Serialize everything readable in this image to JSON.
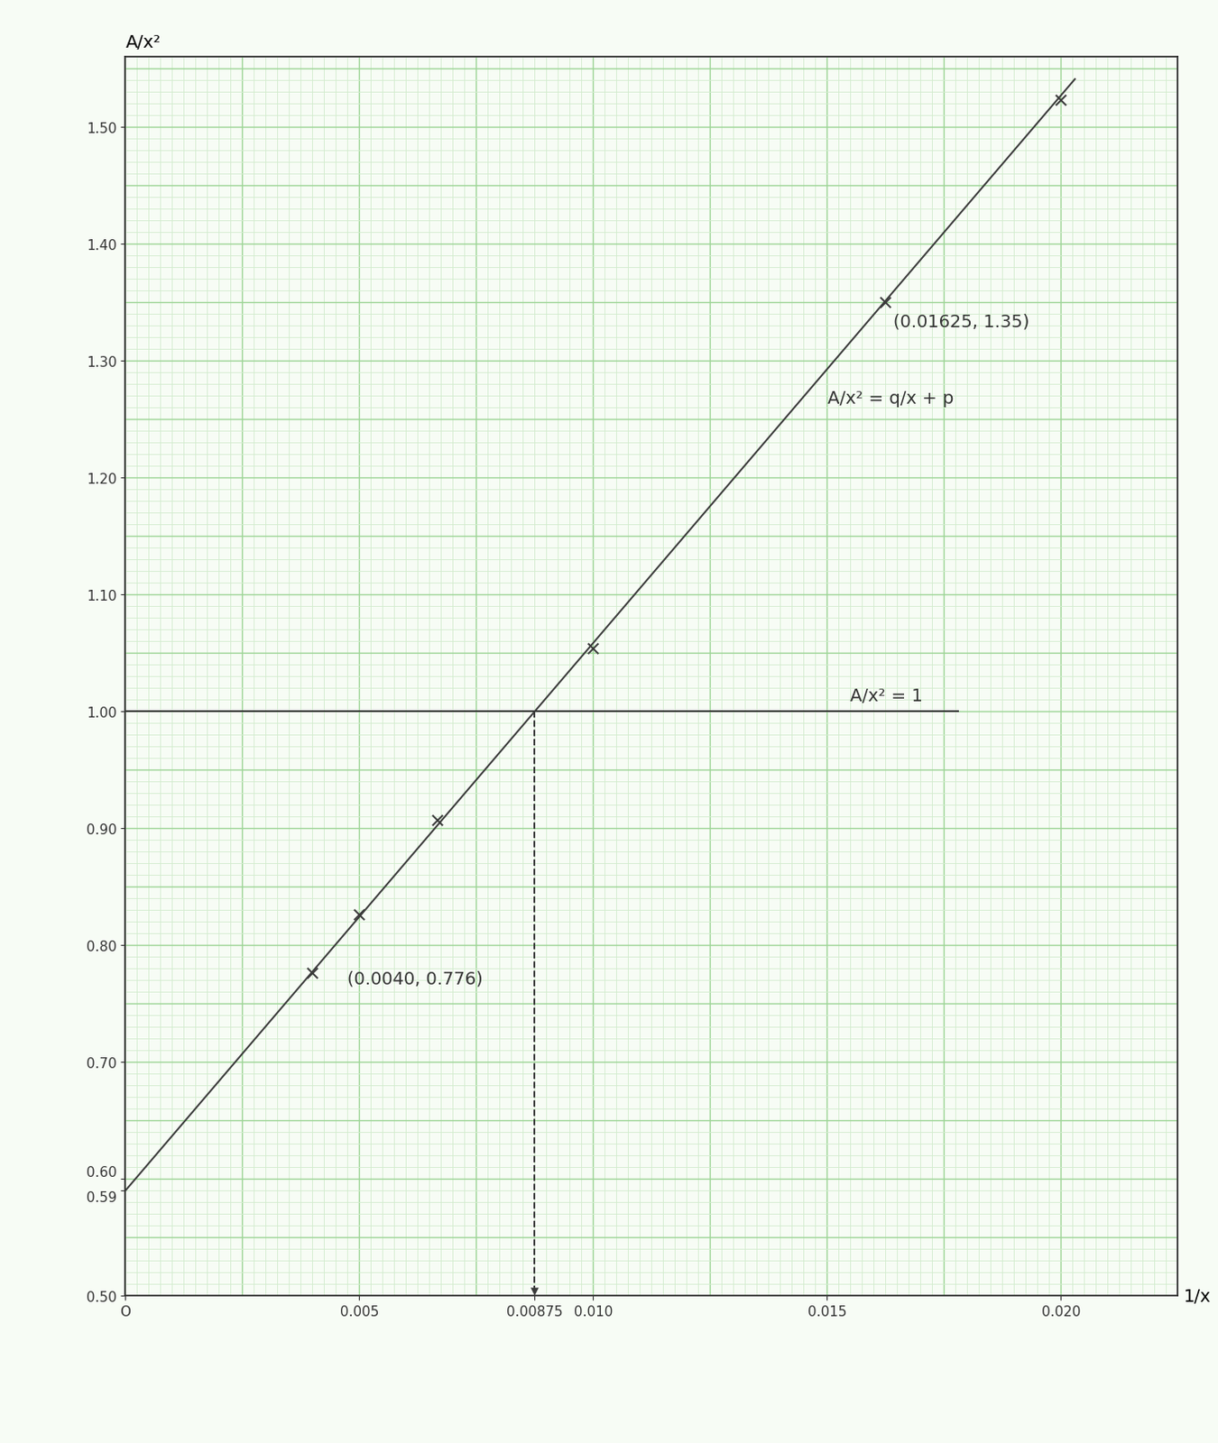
{
  "chart_data": {
    "type": "line",
    "x_label": "1/x",
    "y_label": "A/x²",
    "xlim": [
      0,
      0.0225
    ],
    "ylim": [
      0.5,
      1.56
    ],
    "xticks": [
      {
        "value": 0,
        "label": "O"
      },
      0.005,
      0.00875,
      {
        "value": 0.01,
        "label": "0.010"
      },
      0.015,
      {
        "value": 0.02,
        "label": "0.020"
      }
    ],
    "yticks": [
      {
        "value": 0.5,
        "label": "0.50"
      },
      0.59,
      {
        "value": 0.6,
        "label": "0.60"
      },
      {
        "value": 0.7,
        "label": "0.70"
      },
      {
        "value": 0.8,
        "label": "0.80"
      },
      {
        "value": 0.9,
        "label": "0.90"
      },
      {
        "value": 1.0,
        "label": "1.00"
      },
      {
        "value": 1.1,
        "label": "1.10"
      },
      {
        "value": 1.2,
        "label": "1.20"
      },
      {
        "value": 1.3,
        "label": "1.30"
      },
      {
        "value": 1.4,
        "label": "1.40"
      },
      {
        "value": 1.5,
        "label": "1.50"
      }
    ],
    "grid": true,
    "series": [
      {
        "type": "line",
        "x": [
          0,
          0.0203
        ],
        "values": [
          0.59,
          1.541
        ],
        "color": "#3a3a3a",
        "line_style": "solid"
      },
      {
        "type": "line",
        "x": [
          0,
          0.0178
        ],
        "values": [
          1.0,
          1.0
        ],
        "color": "#3a3a3a",
        "line_style": "solid"
      },
      {
        "type": "line",
        "x": [
          0.00875,
          0.00875
        ],
        "values": [
          1.0,
          0.5
        ],
        "color": "#3a3a3a",
        "line_style": "dashed",
        "marker": "arrow"
      },
      {
        "type": "scatter",
        "x": [
          0.004,
          0.005,
          0.00667,
          0.01,
          0.01625,
          0.02
        ],
        "values": [
          0.776,
          0.826,
          0.907,
          1.054,
          1.35,
          1.523
        ],
        "color": "#3a3a3a",
        "marker": "x"
      }
    ],
    "annotations": [
      {
        "text": "(0.01625, 1.35)",
        "x": 0.01625,
        "y": 1.35
      },
      {
        "text": "(0.0040, 0.776)",
        "x": 0.004,
        "y": 0.776
      },
      {
        "text": "A/x² = q/x + p",
        "x": 0.0149,
        "y": 1.288
      },
      {
        "text": "A/x² = 1",
        "x": 0.0155,
        "y": 1.0
      }
    ]
  }
}
